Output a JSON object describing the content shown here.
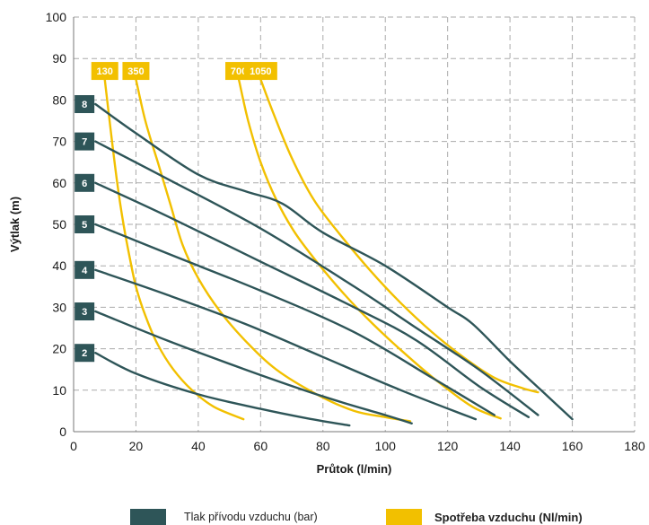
{
  "chart_data": {
    "type": "line",
    "title": "",
    "xlabel": "Průtok (l/min)",
    "ylabel": "Výtlak (m)",
    "xlim": [
      0,
      180
    ],
    "ylim": [
      0,
      100
    ],
    "xticks": [
      0,
      20,
      40,
      60,
      80,
      100,
      120,
      140,
      160,
      180
    ],
    "yticks": [
      0,
      10,
      20,
      30,
      40,
      50,
      60,
      70,
      80,
      90,
      100
    ],
    "grid": true,
    "pressure_series": [
      {
        "label": "2",
        "points": [
          [
            7,
            19
          ],
          [
            20,
            14
          ],
          [
            40,
            9
          ],
          [
            60,
            5.5
          ],
          [
            75,
            3.2
          ],
          [
            88.5,
            1.5
          ]
        ]
      },
      {
        "label": "3",
        "points": [
          [
            7,
            29
          ],
          [
            30,
            22
          ],
          [
            55,
            15
          ],
          [
            80,
            8.5
          ],
          [
            100,
            4
          ],
          [
            108.5,
            2
          ]
        ]
      },
      {
        "label": "4",
        "points": [
          [
            7,
            39
          ],
          [
            30,
            33
          ],
          [
            55,
            26
          ],
          [
            80,
            18
          ],
          [
            105,
            10
          ],
          [
            129,
            3
          ]
        ]
      },
      {
        "label": "5",
        "points": [
          [
            7,
            50
          ],
          [
            30,
            43
          ],
          [
            60,
            34
          ],
          [
            90,
            24
          ],
          [
            115,
            13
          ],
          [
            135,
            4
          ]
        ]
      },
      {
        "label": "6",
        "points": [
          [
            7,
            60
          ],
          [
            30,
            52
          ],
          [
            60,
            41
          ],
          [
            90,
            30
          ],
          [
            110,
            22
          ],
          [
            130,
            11
          ],
          [
            146,
            3.5
          ]
        ]
      },
      {
        "label": "7",
        "points": [
          [
            7,
            70
          ],
          [
            30,
            61
          ],
          [
            60,
            49
          ],
          [
            90,
            35
          ],
          [
            110,
            25
          ],
          [
            130,
            15
          ],
          [
            149,
            4
          ]
        ]
      },
      {
        "label": "8",
        "points": [
          [
            7,
            79
          ],
          [
            20,
            72
          ],
          [
            40,
            62
          ],
          [
            55,
            58
          ],
          [
            67,
            55
          ],
          [
            80,
            48
          ],
          [
            100,
            40
          ],
          [
            120,
            30
          ],
          [
            128,
            26
          ],
          [
            140,
            17
          ],
          [
            150,
            10
          ],
          [
            160,
            3
          ]
        ]
      }
    ],
    "air_series": [
      {
        "label": "130",
        "points": [
          [
            10,
            85
          ],
          [
            12,
            72
          ],
          [
            14,
            60
          ],
          [
            16,
            50
          ],
          [
            18,
            42
          ],
          [
            20,
            35
          ],
          [
            23,
            28
          ],
          [
            27,
            21
          ],
          [
            32,
            15
          ],
          [
            38,
            10
          ],
          [
            45,
            6
          ],
          [
            54.5,
            3
          ]
        ]
      },
      {
        "label": "350",
        "points": [
          [
            20,
            85
          ],
          [
            23,
            75
          ],
          [
            27,
            65
          ],
          [
            31,
            55
          ],
          [
            35,
            45
          ],
          [
            40,
            37
          ],
          [
            47,
            29
          ],
          [
            55,
            22
          ],
          [
            65,
            15
          ],
          [
            78,
            9
          ],
          [
            90,
            5
          ],
          [
            100,
            3.5
          ],
          [
            108,
            2.5
          ]
        ]
      },
      {
        "label": "700",
        "points": [
          [
            53,
            85
          ],
          [
            56,
            75
          ],
          [
            60,
            65
          ],
          [
            65,
            56
          ],
          [
            71,
            48
          ],
          [
            78,
            41
          ],
          [
            87,
            33
          ],
          [
            96,
            26
          ],
          [
            106,
            19
          ],
          [
            117,
            12
          ],
          [
            128,
            6
          ],
          [
            137,
            3.2
          ]
        ]
      },
      {
        "label": "1050",
        "points": [
          [
            60,
            85
          ],
          [
            64,
            77
          ],
          [
            70,
            66
          ],
          [
            77,
            56
          ],
          [
            85,
            48
          ],
          [
            95,
            39
          ],
          [
            105,
            31
          ],
          [
            115,
            24
          ],
          [
            125,
            18
          ],
          [
            135,
            13
          ],
          [
            144,
            10.5
          ],
          [
            149,
            9.5
          ]
        ]
      }
    ],
    "legend": [
      {
        "text": "Tlak přívodu vzduchu (bar)",
        "color": "#2e5558"
      },
      {
        "text": "Spotřeba vzduchu (Nl/min)",
        "color": "#f2c000"
      }
    ],
    "colors": {
      "pressure": "#2e5558",
      "air": "#f2c000",
      "grid": "#aaaaaa"
    }
  }
}
